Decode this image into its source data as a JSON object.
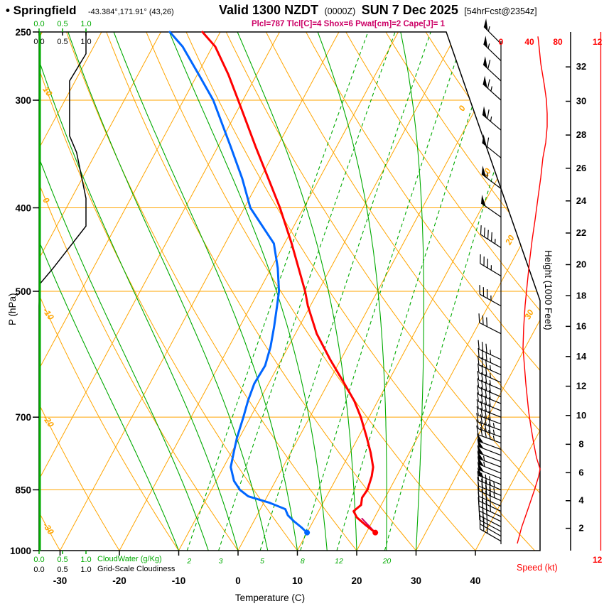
{
  "header": {
    "station": "• Springfield",
    "coords": "-43.384°,171.91° (43,26)",
    "valid": "Valid 1300 NZDT",
    "valid_utc": "(0000Z)",
    "date": "SUN 7 Dec 2025",
    "forecast_tag": "[54hrFcst@2354z]",
    "indices": "Plcl=787 Tlcl[C]=4 Shox=6 Pwat[cm]=2 Cape[J]= 1"
  },
  "axes": {
    "pressure": {
      "title": "P (hPa)",
      "ticks": [
        250,
        300,
        400,
        500,
        700,
        850,
        1000
      ]
    },
    "temperature": {
      "title": "Temperature (C)",
      "ticks": [
        -30,
        -20,
        -10,
        0,
        10,
        20,
        30,
        40
      ]
    },
    "height": {
      "title": "Height (1000 Feet)",
      "ticks": [
        2,
        4,
        6,
        8,
        10,
        12,
        14,
        16,
        18,
        20,
        22,
        24,
        26,
        28,
        30,
        32
      ]
    },
    "speed": {
      "title": "Speed (kt)",
      "ticks": [
        0,
        40,
        80
      ],
      "clipped_tick": "12"
    },
    "cloudwater": {
      "title": "CloudWater (g/Kg)",
      "ticks": [
        "0.0",
        "0.5",
        "1.0"
      ]
    },
    "cloudiness": {
      "title": "Grid-Scale Cloudiness",
      "ticks": [
        "0.0",
        "0.5",
        "1.0"
      ]
    }
  },
  "colors": {
    "skew_lines": "#ffa500",
    "moisture_lines": "#00aa00",
    "temperature": "#ff0000",
    "dewpoint": "#0066ff",
    "parcel": "#cc0066",
    "indices_text": "#cc0066",
    "wind": "#000000",
    "speed_axis": "#ff0000",
    "cloudiness_line": "#000000"
  },
  "chart_data": {
    "type": "line",
    "subtype": "skew-t-log-p-sounding",
    "pressure_range_hpa": [
      250,
      1000
    ],
    "isotherms_c": {
      "start": -90,
      "end": 40,
      "step": 10,
      "border_labels": [
        0,
        10,
        20,
        30
      ]
    },
    "dry_adiabats_theta_c": {
      "start": -30,
      "end": 150,
      "step": 10,
      "border_labels": [
        10,
        0,
        -10,
        -20,
        -30
      ]
    },
    "moist_adiabats_surface_c": [
      -10,
      -5,
      0,
      5,
      10,
      15,
      20,
      25,
      30
    ],
    "mixing_ratio_g_kg": [
      2,
      3,
      5,
      8,
      12,
      20
    ],
    "temperature_profile": [
      [
        953,
        21.5
      ],
      [
        935,
        19.3
      ],
      [
        915,
        17.0
      ],
      [
        900,
        15.9
      ],
      [
        885,
        16.6
      ],
      [
        868,
        16.1
      ],
      [
        850,
        16.3
      ],
      [
        820,
        15.8
      ],
      [
        800,
        15.2
      ],
      [
        770,
        13.5
      ],
      [
        740,
        11.5
      ],
      [
        700,
        8.6
      ],
      [
        670,
        6.0
      ],
      [
        640,
        2.8
      ],
      [
        600,
        -1.8
      ],
      [
        560,
        -6.4
      ],
      [
        520,
        -10.4
      ],
      [
        500,
        -12.2
      ],
      [
        470,
        -15.4
      ],
      [
        440,
        -18.8
      ],
      [
        400,
        -24.0
      ],
      [
        370,
        -28.6
      ],
      [
        340,
        -33.6
      ],
      [
        300,
        -40.8
      ],
      [
        280,
        -44.8
      ],
      [
        260,
        -49.5
      ],
      [
        250,
        -53.0
      ]
    ],
    "dewpoint_profile": [
      [
        953,
        10.0
      ],
      [
        940,
        8.6
      ],
      [
        925,
        6.8
      ],
      [
        910,
        5.2
      ],
      [
        895,
        4.2
      ],
      [
        880,
        1.0
      ],
      [
        865,
        -3.2
      ],
      [
        850,
        -5.2
      ],
      [
        830,
        -7.0
      ],
      [
        800,
        -8.8
      ],
      [
        770,
        -9.6
      ],
      [
        740,
        -10.4
      ],
      [
        700,
        -11.2
      ],
      [
        670,
        -11.9
      ],
      [
        640,
        -12.4
      ],
      [
        610,
        -12.2
      ],
      [
        580,
        -13.0
      ],
      [
        550,
        -14.2
      ],
      [
        520,
        -15.6
      ],
      [
        500,
        -16.6
      ],
      [
        470,
        -18.9
      ],
      [
        440,
        -21.8
      ],
      [
        400,
        -29.0
      ],
      [
        370,
        -33.0
      ],
      [
        340,
        -37.8
      ],
      [
        300,
        -45.0
      ],
      [
        280,
        -49.8
      ],
      [
        260,
        -55.0
      ],
      [
        250,
        -58.5
      ]
    ],
    "parcel_path": [
      [
        953,
        21.5
      ],
      [
        918,
        18.0
      ]
    ],
    "wind_barbs": [
      [
        975,
        300,
        24
      ],
      [
        962,
        300,
        25
      ],
      [
        950,
        298,
        27
      ],
      [
        938,
        297,
        29
      ],
      [
        925,
        296,
        31
      ],
      [
        913,
        295,
        34
      ],
      [
        900,
        295,
        37
      ],
      [
        888,
        294,
        40
      ],
      [
        875,
        294,
        43
      ],
      [
        863,
        293,
        45
      ],
      [
        850,
        293,
        47
      ],
      [
        838,
        292,
        50
      ],
      [
        825,
        292,
        52
      ],
      [
        813,
        292,
        54
      ],
      [
        800,
        291,
        55
      ],
      [
        788,
        291,
        52
      ],
      [
        775,
        291,
        50
      ],
      [
        763,
        290,
        48
      ],
      [
        750,
        290,
        46
      ],
      [
        738,
        290,
        45
      ],
      [
        725,
        290,
        43
      ],
      [
        713,
        291,
        42
      ],
      [
        700,
        291,
        41
      ],
      [
        688,
        292,
        40
      ],
      [
        675,
        292,
        39
      ],
      [
        663,
        293,
        38
      ],
      [
        650,
        293,
        36
      ],
      [
        638,
        294,
        35
      ],
      [
        625,
        294,
        34
      ],
      [
        613,
        295,
        33
      ],
      [
        600,
        295,
        33
      ],
      [
        560,
        297,
        32
      ],
      [
        520,
        299,
        34
      ],
      [
        480,
        301,
        37
      ],
      [
        445,
        303,
        43
      ],
      [
        410,
        305,
        48
      ],
      [
        380,
        307,
        53
      ],
      [
        350,
        309,
        59
      ],
      [
        325,
        310,
        64
      ],
      [
        300,
        312,
        64
      ],
      [
        285,
        313,
        62
      ],
      [
        270,
        314,
        56
      ],
      [
        258,
        315,
        53
      ]
    ],
    "wind_speed_profile": [
      [
        981,
        23
      ],
      [
        940,
        29
      ],
      [
        900,
        37
      ],
      [
        851,
        47
      ],
      [
        820,
        53
      ],
      [
        804,
        55
      ],
      [
        780,
        50
      ],
      [
        750,
        46
      ],
      [
        717,
        42
      ],
      [
        690,
        39
      ],
      [
        640,
        35
      ],
      [
        610,
        33
      ],
      [
        582,
        31
      ],
      [
        550,
        32
      ],
      [
        519,
        34
      ],
      [
        490,
        37
      ],
      [
        463,
        40
      ],
      [
        435,
        44
      ],
      [
        413,
        48
      ],
      [
        390,
        52
      ],
      [
        369,
        56
      ],
      [
        350,
        59
      ],
      [
        336,
        63
      ],
      [
        322,
        65
      ],
      [
        311,
        65
      ],
      [
        300,
        64
      ],
      [
        288,
        61
      ],
      [
        272,
        56
      ],
      [
        257,
        53
      ],
      [
        253,
        52
      ]
    ],
    "cloudiness_profile": [
      [
        250,
        1.0
      ],
      [
        265,
        1.0
      ],
      [
        285,
        0.65
      ],
      [
        330,
        0.65
      ],
      [
        345,
        0.8
      ],
      [
        390,
        1.0
      ],
      [
        420,
        1.0
      ],
      [
        470,
        0.3
      ],
      [
        490,
        0.02
      ],
      [
        520,
        0.0
      ],
      [
        1000,
        0.0
      ]
    ],
    "cloudwater_profile": [
      [
        250,
        0
      ],
      [
        1000,
        0
      ]
    ]
  }
}
